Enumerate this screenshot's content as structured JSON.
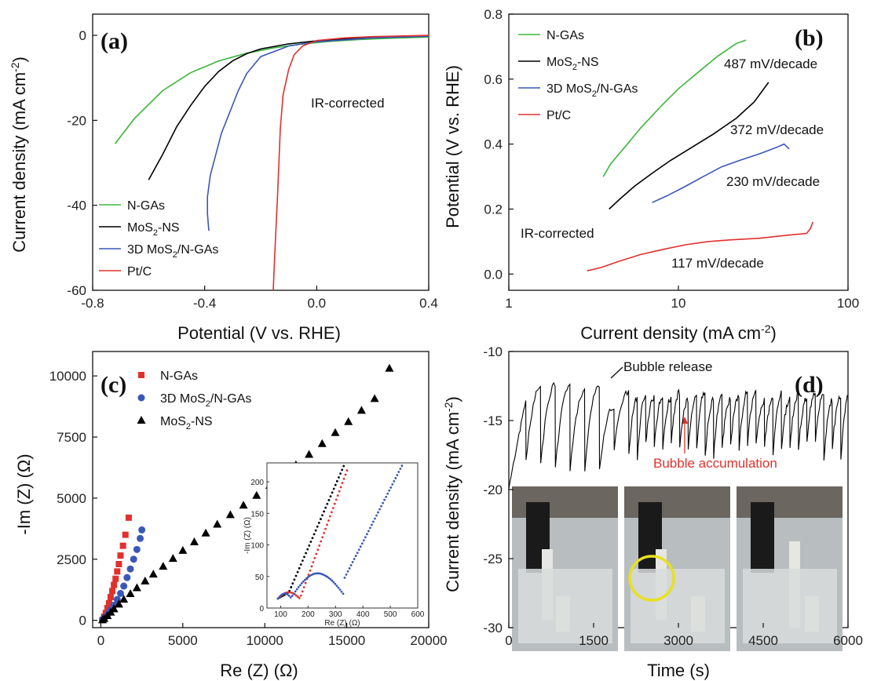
{
  "colors": {
    "green": "#3cb53c",
    "black": "#000000",
    "blue": "#3a57b8",
    "red": "#e0312c",
    "yellow": "#e8e020"
  },
  "chart_data": [
    {
      "panel": "(a)",
      "type": "line",
      "xlabel": "Potential (V vs. RHE)",
      "ylabel": "Current density (mA cm-2)",
      "xlim": [
        -0.8,
        0.4
      ],
      "ylim": [
        -60,
        5
      ],
      "xticks": [
        "-0.8",
        "-0.4",
        "0.0",
        "0.4"
      ],
      "yticks": [
        "-60",
        "-40",
        "-20",
        "0"
      ],
      "annotation": "IR-corrected",
      "legend_position": "bottom-left",
      "series": [
        {
          "name": "N-GAs",
          "color": "#3cb53c",
          "x": [
            -0.72,
            -0.65,
            -0.55,
            -0.45,
            -0.35,
            -0.25,
            -0.15,
            -0.05,
            0.05,
            0.15,
            0.25,
            0.4
          ],
          "y": [
            -25.5,
            -19.5,
            -13,
            -8.8,
            -6,
            -4.2,
            -2.9,
            -2,
            -1.4,
            -1,
            -0.7,
            -0.4
          ]
        },
        {
          "name": "MoS2-NS",
          "color": "#000000",
          "x": [
            -0.6,
            -0.55,
            -0.5,
            -0.45,
            -0.4,
            -0.35,
            -0.3,
            -0.25,
            -0.2,
            -0.1,
            0.0,
            0.1,
            0.2,
            0.4
          ],
          "y": [
            -34,
            -28,
            -21.5,
            -16.5,
            -12,
            -8.5,
            -6,
            -4.3,
            -3.2,
            -2,
            -1.3,
            -0.8,
            -0.5,
            -0.2
          ]
        },
        {
          "name": "3D MoS2/N-GAs",
          "color": "#3a57b8",
          "x": [
            -0.385,
            -0.39,
            -0.39,
            -0.38,
            -0.36,
            -0.34,
            -0.31,
            -0.28,
            -0.25,
            -0.2,
            -0.1,
            0.0,
            0.2,
            0.4
          ],
          "y": [
            -46,
            -42,
            -38,
            -33,
            -28,
            -23,
            -18,
            -13,
            -9,
            -5,
            -2.5,
            -1.5,
            -0.6,
            -0.2
          ]
        },
        {
          "name": "Pt/C",
          "color": "#e0312c",
          "x": [
            -0.155,
            -0.15,
            -0.145,
            -0.14,
            -0.135,
            -0.13,
            -0.12,
            -0.1,
            -0.08,
            -0.05,
            0.0,
            0.1,
            0.2,
            0.4
          ],
          "y": [
            -60,
            -52,
            -45,
            -38,
            -30,
            -22,
            -14,
            -8,
            -4.5,
            -2.5,
            -1.2,
            -0.6,
            -0.3,
            0
          ]
        }
      ]
    },
    {
      "panel": "(b)",
      "type": "line",
      "xlabel": "Current density (mA cm-2)",
      "ylabel": "Potential (V vs. RHE)",
      "xscale": "log",
      "xlim": [
        1,
        100
      ],
      "ylim": [
        -0.05,
        0.8
      ],
      "xticks": [
        "1",
        "10",
        "100"
      ],
      "yticks": [
        "0.0",
        "0.2",
        "0.4",
        "0.6",
        "0.8"
      ],
      "annotation": "IR-corrected",
      "legend_position": "top-left",
      "series": [
        {
          "name": "N-GAs",
          "color": "#3cb53c",
          "x": [
            3.6,
            4,
            5,
            6,
            8,
            10,
            13,
            17,
            22,
            25
          ],
          "y": [
            0.3,
            0.34,
            0.4,
            0.45,
            0.52,
            0.57,
            0.62,
            0.67,
            0.71,
            0.72
          ]
        },
        {
          "name": "MoS2-NS",
          "color": "#000000",
          "x": [
            3.9,
            4.5,
            5.5,
            7,
            9,
            12,
            16,
            22,
            28,
            34
          ],
          "y": [
            0.2,
            0.23,
            0.27,
            0.31,
            0.35,
            0.39,
            0.43,
            0.48,
            0.53,
            0.59
          ]
        },
        {
          "name": "3D MoS2/N-GAs",
          "color": "#3a57b8",
          "x": [
            7,
            8.5,
            11,
            14,
            18,
            23,
            30,
            38,
            42,
            45
          ],
          "y": [
            0.22,
            0.24,
            0.27,
            0.3,
            0.33,
            0.35,
            0.37,
            0.39,
            0.4,
            0.385
          ]
        },
        {
          "name": "Pt/C",
          "color": "#e0312c",
          "x": [
            2.9,
            3.5,
            4.5,
            6,
            8,
            11,
            15,
            20,
            30,
            45,
            57,
            60,
            62
          ],
          "y": [
            0.01,
            0.02,
            0.04,
            0.06,
            0.075,
            0.09,
            0.1,
            0.105,
            0.11,
            0.12,
            0.125,
            0.14,
            0.16
          ]
        }
      ],
      "labels": [
        "487 mV/decade",
        "372 mV/decade",
        "230 mV/decade",
        "117 mV/decade"
      ]
    },
    {
      "panel": "(c)",
      "type": "scatter",
      "xlabel": "Re (Z) (Ω)",
      "ylabel": "-Im (Z) (Ω)",
      "xlim": [
        -500,
        20000
      ],
      "ylim": [
        -300,
        11000
      ],
      "xticks": [
        "0",
        "5000",
        "10000",
        "15000",
        "20000"
      ],
      "yticks": [
        "0",
        "2500",
        "5000",
        "7500",
        "10000"
      ],
      "legend_position": "top-left",
      "series": [
        {
          "name": "N-GAs",
          "marker": "square",
          "color": "#e0312c",
          "x": [
            100,
            200,
            300,
            400,
            500,
            600,
            700,
            800,
            900,
            1000,
            1100,
            1200,
            1350,
            1500,
            1700
          ],
          "y": [
            20,
            150,
            300,
            500,
            700,
            950,
            1200,
            1450,
            1700,
            2000,
            2300,
            2650,
            3050,
            3500,
            4200
          ]
        },
        {
          "name": "3D MoS2/N-GAs",
          "marker": "circle",
          "color": "#3a57b8",
          "x": [
            100,
            200,
            300,
            450,
            600,
            800,
            1000,
            1200,
            1400,
            1600,
            1800,
            2000,
            2200,
            2400,
            2500
          ],
          "y": [
            20,
            80,
            160,
            280,
            420,
            620,
            850,
            1100,
            1400,
            1750,
            2100,
            2500,
            2900,
            3350,
            3700
          ]
        },
        {
          "name": "MoS2-NS",
          "marker": "triangle",
          "color": "#000000",
          "x": [
            100,
            200,
            400,
            600,
            800,
            1100,
            1400,
            1800,
            2200,
            2700,
            3200,
            3800,
            4400,
            5000,
            5700,
            6400,
            7100,
            7900,
            8700,
            9500,
            10300,
            11100,
            11900,
            12700,
            13500,
            14300,
            15100,
            15900,
            16700,
            17600
          ],
          "y": [
            10,
            60,
            180,
            320,
            460,
            650,
            850,
            1080,
            1320,
            1600,
            1880,
            2200,
            2520,
            2850,
            3200,
            3560,
            3920,
            4310,
            4700,
            5100,
            5510,
            5920,
            6350,
            6780,
            7220,
            7670,
            8120,
            8580,
            9060,
            10300
          ]
        }
      ],
      "inset": {
        "xlabel": "Re (Z) (Ω)",
        "ylabel": "-Im (Z) (Ω)",
        "xlim": [
          50,
          600
        ],
        "ylim": [
          0,
          230
        ],
        "xticks": [
          "100",
          "200",
          "300",
          "400",
          "500",
          "600"
        ],
        "yticks": [
          "0",
          "50",
          "100",
          "150",
          "200"
        ]
      }
    },
    {
      "panel": "(d)",
      "type": "line",
      "xlabel": "Time (s)",
      "ylabel": "Current density (mA cm-2)",
      "xlim": [
        0,
        6000
      ],
      "ylim": [
        -30,
        -10
      ],
      "xticks": [
        "0",
        "1500",
        "3000",
        "4500",
        "6000"
      ],
      "yticks": [
        "-30",
        "-25",
        "-20",
        "-15",
        "-10"
      ],
      "annotations": [
        "Bubble release",
        "Bubble accumulation"
      ]
    }
  ]
}
